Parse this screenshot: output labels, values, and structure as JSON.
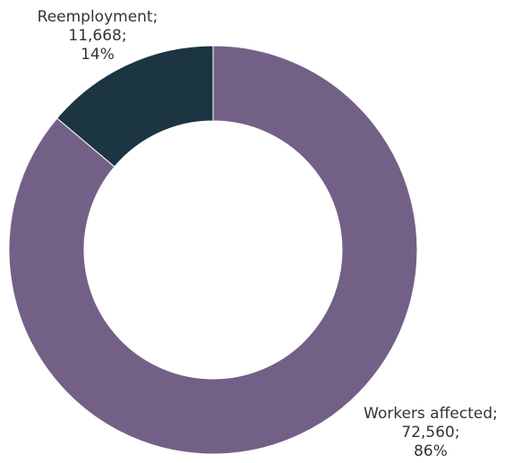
{
  "chart_data": {
    "type": "pie",
    "variant": "donut",
    "title": "",
    "slices": [
      {
        "name": "Workers affected",
        "value": 72560,
        "color": "#736087",
        "label_name": "Workers affected;",
        "label_value": "72,560;",
        "label_pct": "86%"
      },
      {
        "name": "Reemployment",
        "value": 11668,
        "color": "#1b3642",
        "label_name": "Reemployment;",
        "label_value": "11,668;",
        "label_pct": "14%"
      }
    ],
    "legend": "none"
  }
}
